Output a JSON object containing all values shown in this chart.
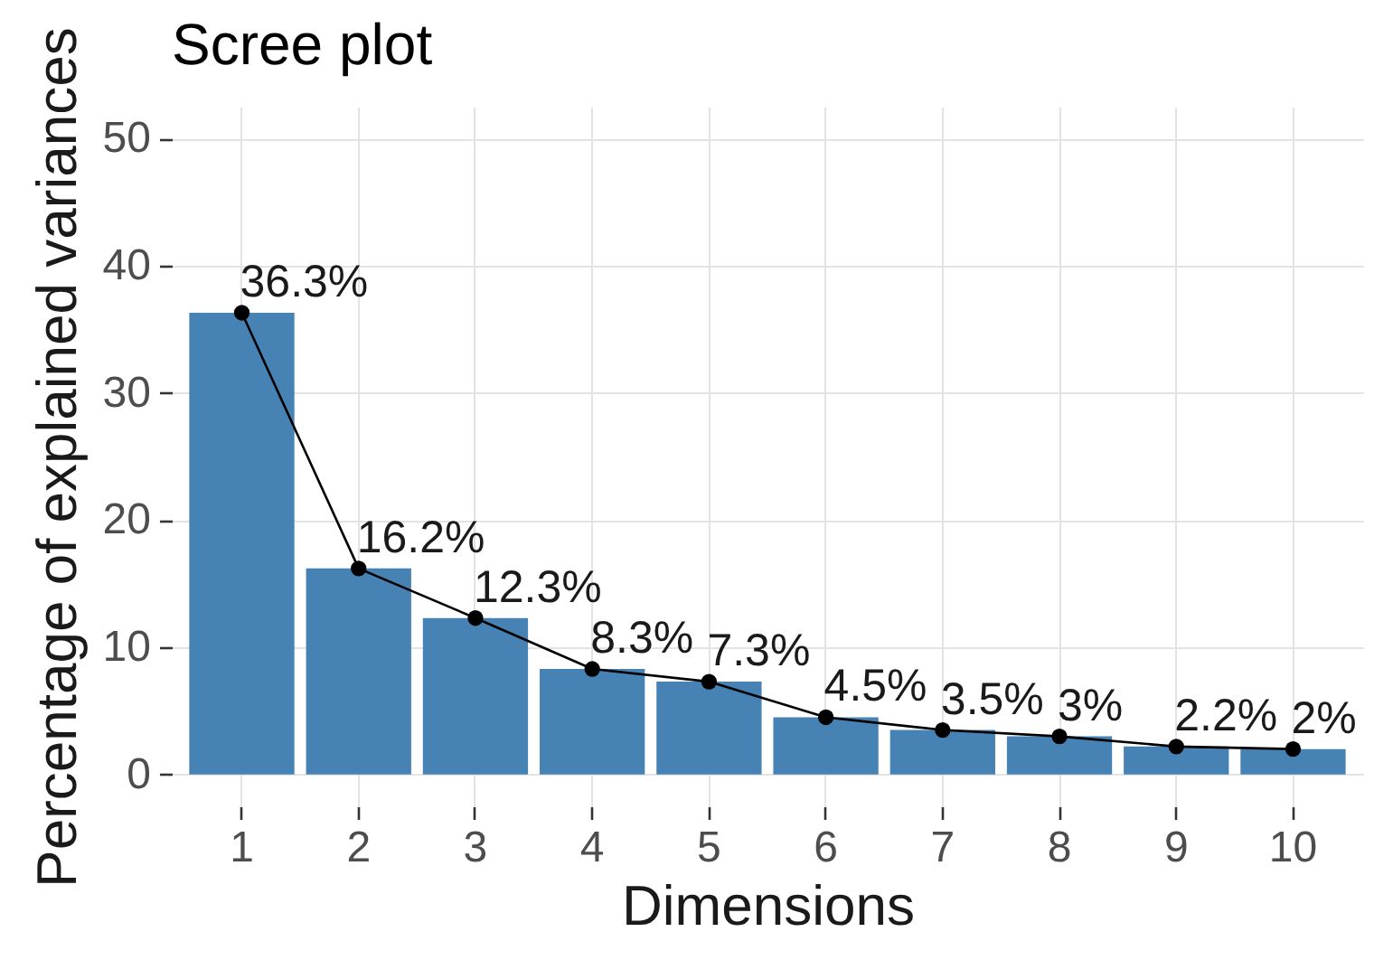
{
  "chart_data": {
    "type": "bar",
    "title": "Scree plot",
    "xlabel": "Dimensions",
    "ylabel": "Percentage of explained variances",
    "categories": [
      "1",
      "2",
      "3",
      "4",
      "5",
      "6",
      "7",
      "8",
      "9",
      "10"
    ],
    "series": [
      {
        "color": "#4682b4",
        "values": [
          36.3,
          16.2,
          12.3,
          8.3,
          7.3,
          4.5,
          3.5,
          3,
          2.2,
          2
        ]
      },
      {
        "type": "line",
        "color": "#000000",
        "values": [
          36.3,
          16.2,
          12.3,
          8.3,
          7.3,
          4.5,
          3.5,
          3,
          2.2,
          2
        ],
        "value_labels": [
          "36.3%",
          "16.2%",
          "12.3%",
          "8.3%",
          "7.3%",
          "4.5%",
          "3.5%",
          "3%",
          "2.2%",
          "2%"
        ]
      }
    ],
    "ylim": [
      -2.5,
      52.5
    ],
    "yticks": [
      0,
      10,
      20,
      30,
      40,
      50
    ],
    "grid": true,
    "marker": "circle"
  }
}
